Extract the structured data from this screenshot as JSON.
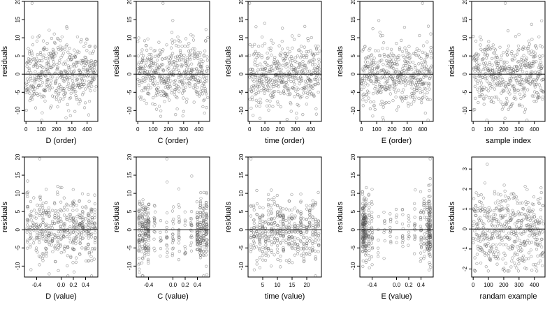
{
  "colors": {
    "points": "#555555",
    "zero_line": "#000000"
  },
  "chart_data": [
    {
      "type": "scatter",
      "xlabel": "D (order)",
      "ylabel": "residuals",
      "x_kind": "index",
      "n": 460,
      "xlim": [
        -10,
        470
      ],
      "ylim": [
        -13,
        20
      ],
      "xticks": [
        0,
        100,
        200,
        300,
        400
      ],
      "yticks": [
        -10,
        -5,
        0,
        5,
        10,
        15,
        20
      ],
      "zero_line": 0,
      "grid": false,
      "seed": 11,
      "y_sd": 4.5,
      "outliers": [
        {
          "x": 40,
          "y": 19.5
        }
      ]
    },
    {
      "type": "scatter",
      "xlabel": "C (order)",
      "ylabel": "residuals",
      "x_kind": "index",
      "n": 460,
      "xlim": [
        -10,
        470
      ],
      "ylim": [
        -13,
        20
      ],
      "xticks": [
        0,
        100,
        200,
        300,
        400
      ],
      "yticks": [
        -10,
        -5,
        0,
        5,
        10,
        15,
        20
      ],
      "zero_line": 0,
      "grid": false,
      "seed": 23,
      "y_sd": 4.5,
      "outliers": [
        {
          "x": 165,
          "y": 19.5
        }
      ]
    },
    {
      "type": "scatter",
      "xlabel": "time (order)",
      "ylabel": "residuals",
      "x_kind": "index",
      "n": 460,
      "xlim": [
        -10,
        470
      ],
      "ylim": [
        -13,
        20
      ],
      "xticks": [
        0,
        100,
        200,
        300,
        400
      ],
      "yticks": [
        -10,
        -5,
        0,
        5,
        10,
        15,
        20
      ],
      "zero_line": 0,
      "grid": false,
      "seed": 37,
      "y_sd": 4.5,
      "outliers": [
        {
          "x": 0,
          "y": 19.5
        }
      ]
    },
    {
      "type": "scatter",
      "xlabel": "E (order)",
      "ylabel": "residuals",
      "x_kind": "index",
      "n": 460,
      "xlim": [
        -10,
        470
      ],
      "ylim": [
        -13,
        20
      ],
      "xticks": [
        0,
        100,
        200,
        300,
        400
      ],
      "yticks": [
        -10,
        -5,
        0,
        5,
        10,
        15,
        20
      ],
      "zero_line": 0,
      "grid": false,
      "seed": 41,
      "y_sd": 4.5,
      "outliers": [
        {
          "x": 400,
          "y": 19.5
        }
      ]
    },
    {
      "type": "scatter",
      "xlabel": "sample index",
      "ylabel": "residuals",
      "x_kind": "index",
      "n": 460,
      "xlim": [
        -10,
        470
      ],
      "ylim": [
        -13,
        20
      ],
      "xticks": [
        0,
        100,
        200,
        300,
        400
      ],
      "yticks": [
        -10,
        -5,
        0,
        5,
        10,
        15,
        20
      ],
      "zero_line": 0,
      "grid": false,
      "seed": 53,
      "y_sd": 4.5,
      "outliers": [
        {
          "x": 210,
          "y": 19.5
        }
      ]
    },
    {
      "type": "scatter",
      "xlabel": "D (value)",
      "ylabel": "residuals",
      "x_kind": "levels",
      "levels": [
        -0.55,
        -0.5,
        -0.45,
        -0.4,
        -0.35,
        -0.3,
        -0.25,
        -0.2,
        -0.15,
        -0.1,
        -0.05,
        0.0,
        0.05,
        0.1,
        0.15,
        0.2,
        0.25,
        0.3,
        0.35,
        0.4,
        0.45,
        0.5,
        0.55
      ],
      "level_jitter": 0.012,
      "n": 460,
      "xlim": [
        -0.6,
        0.6
      ],
      "ylim": [
        -13,
        20
      ],
      "xticks": [
        -0.4,
        0.0,
        0.2,
        0.4
      ],
      "xtick_labels": [
        "-0.4",
        "0.0",
        "0.2",
        "0.4"
      ],
      "yticks": [
        -10,
        -5,
        0,
        5,
        10,
        15,
        20
      ],
      "zero_line": 0,
      "grid": false,
      "seed": 61,
      "y_sd": 4.5,
      "outliers": [
        {
          "x": -0.35,
          "y": 19.5
        }
      ]
    },
    {
      "type": "scatter",
      "xlabel": "C (value)",
      "ylabel": "residuals",
      "x_kind": "levels",
      "levels": [
        -0.55,
        -0.5,
        -0.45,
        -0.4,
        -0.3,
        -0.2,
        -0.1,
        0.0,
        0.1,
        0.2,
        0.3,
        0.4,
        0.45,
        0.5,
        0.55
      ],
      "level_weights": [
        3,
        3,
        3,
        3,
        1,
        1,
        1,
        1,
        1,
        1,
        1,
        3,
        3,
        3,
        3
      ],
      "level_jitter": 0.01,
      "n": 460,
      "xlim": [
        -0.6,
        0.6
      ],
      "ylim": [
        -13,
        20
      ],
      "xticks": [
        -0.4,
        0.0,
        0.2,
        0.4
      ],
      "xtick_labels": [
        "-0.4",
        "0.0",
        "0.2",
        "0.4"
      ],
      "yticks": [
        -10,
        -5,
        0,
        5,
        10,
        15,
        20
      ],
      "zero_line": 0,
      "grid": false,
      "seed": 71,
      "y_sd": 4.5,
      "outliers": [
        {
          "x": -0.1,
          "y": 19.5
        }
      ]
    },
    {
      "type": "scatter",
      "xlabel": "time (value)",
      "ylabel": "residuals",
      "x_kind": "levels",
      "levels": [
        1,
        2,
        3,
        4,
        5,
        6,
        7,
        8,
        9,
        10,
        11,
        12,
        13,
        14,
        15,
        16,
        17,
        18,
        19,
        20,
        21,
        22,
        23,
        24
      ],
      "level_jitter": 0.12,
      "n": 460,
      "xlim": [
        0,
        25
      ],
      "ylim": [
        -13,
        20
      ],
      "xticks": [
        5,
        10,
        15,
        20
      ],
      "xtick_labels": [
        "5",
        "10",
        "15",
        "20"
      ],
      "yticks": [
        -10,
        -5,
        0,
        5,
        10,
        15,
        20
      ],
      "zero_line": 0,
      "grid": false,
      "seed": 83,
      "y_sd": 4.5,
      "outliers": [
        {
          "x": 1,
          "y": 19.5
        }
      ]
    },
    {
      "type": "scatter",
      "xlabel": "E (value)",
      "ylabel": "residuals",
      "x_kind": "levels",
      "levels": [
        -0.55,
        -0.53,
        -0.5,
        -0.45,
        -0.4,
        -0.3,
        -0.2,
        -0.1,
        0.0,
        0.1,
        0.2,
        0.3,
        0.4,
        0.45,
        0.5,
        0.53,
        0.55
      ],
      "level_weights": [
        6,
        6,
        4,
        2,
        2,
        1,
        1,
        1,
        1,
        1,
        1,
        1,
        2,
        2,
        4,
        6,
        6
      ],
      "level_jitter": 0.008,
      "n": 460,
      "xlim": [
        -0.6,
        0.6
      ],
      "ylim": [
        -13,
        20
      ],
      "xticks": [
        -0.4,
        0.0,
        0.2,
        0.4
      ],
      "xtick_labels": [
        "-0.4",
        "0.0",
        "0.2",
        "0.4"
      ],
      "yticks": [
        -10,
        -5,
        0,
        5,
        10,
        15,
        20
      ],
      "zero_line": 0,
      "grid": false,
      "seed": 97,
      "y_sd": 4.5,
      "outliers": [
        {
          "x": 0.55,
          "y": 19.5
        }
      ]
    },
    {
      "type": "scatter",
      "xlabel": "randam example",
      "ylabel": "residuals",
      "x_kind": "index",
      "n": 460,
      "xlim": [
        -10,
        470
      ],
      "ylim": [
        -2.4,
        3.6
      ],
      "xticks": [
        0,
        100,
        200,
        300,
        400
      ],
      "yticks": [
        -2,
        -1,
        0,
        1,
        2,
        3
      ],
      "zero_line": 0,
      "grid": false,
      "seed": 101,
      "y_sd": 1.0,
      "outliers": []
    }
  ]
}
